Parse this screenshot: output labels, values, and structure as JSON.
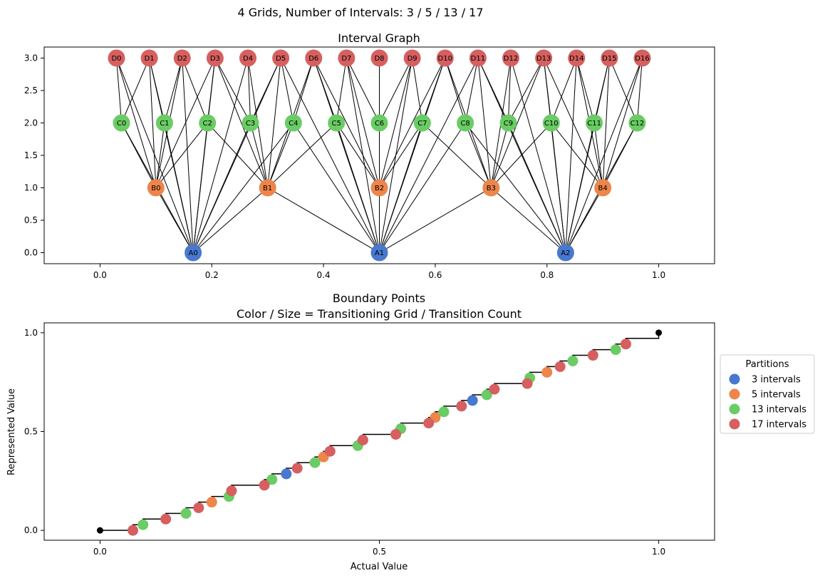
{
  "figure_title": "4 Grids, Number of Intervals: 3 / 5 / 13 / 17",
  "colors": {
    "grid3": "#4878cf",
    "grid5": "#ee854a",
    "grid13": "#6acc64",
    "grid17": "#d65f5f",
    "step": "#000000"
  },
  "chart_data": [
    {
      "type": "scatter",
      "title": "Interval Graph",
      "xlabel": "",
      "ylabel": "",
      "xlim": [
        -0.1,
        1.1
      ],
      "ylim": [
        -0.17,
        3.17
      ],
      "xticks": [
        0.0,
        0.2,
        0.4,
        0.6,
        0.8,
        1.0
      ],
      "xtick_labels": [
        "0.0",
        "0.2",
        "0.4",
        "0.6",
        "0.8",
        "1.0"
      ],
      "yticks": [
        0.0,
        0.5,
        1.0,
        1.5,
        2.0,
        2.5,
        3.0
      ],
      "ytick_labels": [
        "0.0",
        "0.5",
        "1.0",
        "1.5",
        "2.0",
        "2.5",
        "3.0"
      ],
      "grid": false,
      "nodes": {
        "A": {
          "count": 3,
          "level": 0,
          "color": "#4878cf"
        },
        "B": {
          "count": 5,
          "level": 1,
          "color": "#ee854a"
        },
        "C": {
          "count": 13,
          "level": 2,
          "color": "#6acc64"
        },
        "D": {
          "count": 17,
          "level": 3,
          "color": "#d65f5f"
        }
      },
      "node_labels": {
        "A": [
          "A0",
          "A1",
          "A2"
        ],
        "B": [
          "B0",
          "B1",
          "B2",
          "B3",
          "B4"
        ],
        "C": [
          "C0",
          "C1",
          "C2",
          "C3",
          "C4",
          "C5",
          "C6",
          "C7",
          "C8",
          "C9",
          "C10",
          "C11",
          "C12"
        ],
        "D": [
          "D0",
          "D1",
          "D2",
          "D3",
          "D4",
          "D5",
          "D6",
          "D7",
          "D8",
          "D9",
          "D10",
          "D11",
          "D12",
          "D13",
          "D14",
          "D15",
          "D16"
        ]
      },
      "edges_rule": "edge between nodes whose intervals overlap"
    },
    {
      "type": "scatter",
      "title": "Boundary Points",
      "subtitle": "Color / Size = Transitioning Grid / Transition Count",
      "xlabel": "Actual Value",
      "ylabel": "Represented Value",
      "xlim": [
        -0.1,
        1.1
      ],
      "ylim": [
        -0.05,
        1.05
      ],
      "xticks": [
        0.0,
        0.5,
        1.0
      ],
      "xtick_labels": [
        "0.0",
        "0.5",
        "1.0"
      ],
      "yticks": [
        0.0,
        0.5,
        1.0
      ],
      "ytick_labels": [
        "0.0",
        "0.5",
        "1.0"
      ],
      "grid": false,
      "legend": {
        "title": "Partitions",
        "placement": "center-right-outside",
        "entries": [
          "3 intervals",
          "5 intervals",
          "13 intervals",
          "17 intervals"
        ]
      },
      "series": [
        {
          "name": "3 intervals",
          "color": "#4878cf",
          "n": 3
        },
        {
          "name": "5 intervals",
          "color": "#ee854a",
          "n": 5
        },
        {
          "name": "13 intervals",
          "color": "#6acc64",
          "n": 13
        },
        {
          "name": "17 intervals",
          "color": "#d65f5f",
          "n": 17
        }
      ],
      "endpoints": [
        [
          0.0,
          0.0
        ],
        [
          1.0,
          1.0
        ]
      ]
    }
  ]
}
